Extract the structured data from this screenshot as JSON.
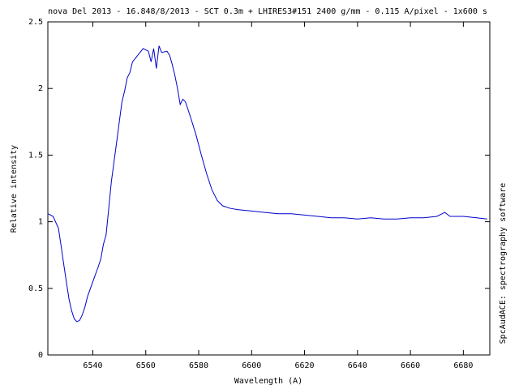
{
  "chart_data": {
    "type": "line",
    "title": "nova Del 2013 - 16.848/8/2013 - SCT 0.3m + LHIRES3#151 2400 g/mm - 0.115 A/pixel - 1x600 s",
    "x_label": "Wavelength (A)",
    "y_label": "Relative intensity",
    "side_note": "SpcAudACE: spectrography software",
    "x": [
      6523,
      6525,
      6527,
      6528,
      6529,
      6530,
      6531,
      6532,
      6533,
      6534,
      6535,
      6536,
      6537,
      6538,
      6540,
      6542,
      6543,
      6544,
      6545,
      6546,
      6547,
      6548,
      6549,
      6550,
      6551,
      6552,
      6553,
      6554,
      6555,
      6557,
      6559,
      6561,
      6562,
      6563,
      6564,
      6565,
      6566,
      6568,
      6569,
      6570,
      6571,
      6572,
      6573,
      6574,
      6575,
      6577,
      6579,
      6581,
      6583,
      6585,
      6587,
      6589,
      6592,
      6595,
      6600,
      6605,
      6610,
      6615,
      6620,
      6625,
      6630,
      6635,
      6640,
      6645,
      6650,
      6655,
      6660,
      6665,
      6670,
      6673,
      6675,
      6680,
      6685,
      6689
    ],
    "values": [
      1.06,
      1.04,
      0.95,
      0.82,
      0.68,
      0.55,
      0.42,
      0.33,
      0.27,
      0.25,
      0.26,
      0.3,
      0.36,
      0.44,
      0.55,
      0.66,
      0.72,
      0.83,
      0.9,
      1.1,
      1.3,
      1.45,
      1.6,
      1.75,
      1.9,
      1.98,
      2.08,
      2.12,
      2.2,
      2.25,
      2.3,
      2.28,
      2.2,
      2.3,
      2.15,
      2.32,
      2.27,
      2.28,
      2.25,
      2.18,
      2.1,
      2.0,
      1.88,
      1.92,
      1.9,
      1.78,
      1.65,
      1.5,
      1.36,
      1.24,
      1.16,
      1.12,
      1.1,
      1.09,
      1.08,
      1.07,
      1.06,
      1.06,
      1.05,
      1.04,
      1.03,
      1.03,
      1.02,
      1.03,
      1.02,
      1.02,
      1.03,
      1.03,
      1.04,
      1.07,
      1.04,
      1.04,
      1.03,
      1.02
    ],
    "color": "#0000cc",
    "xlim": [
      6523,
      6690
    ],
    "ylim": [
      0,
      2.5
    ],
    "xticks": [
      6540,
      6560,
      6580,
      6600,
      6620,
      6640,
      6660,
      6680
    ],
    "yticks": [
      0,
      0.5,
      1,
      1.5,
      2,
      2.5
    ]
  }
}
